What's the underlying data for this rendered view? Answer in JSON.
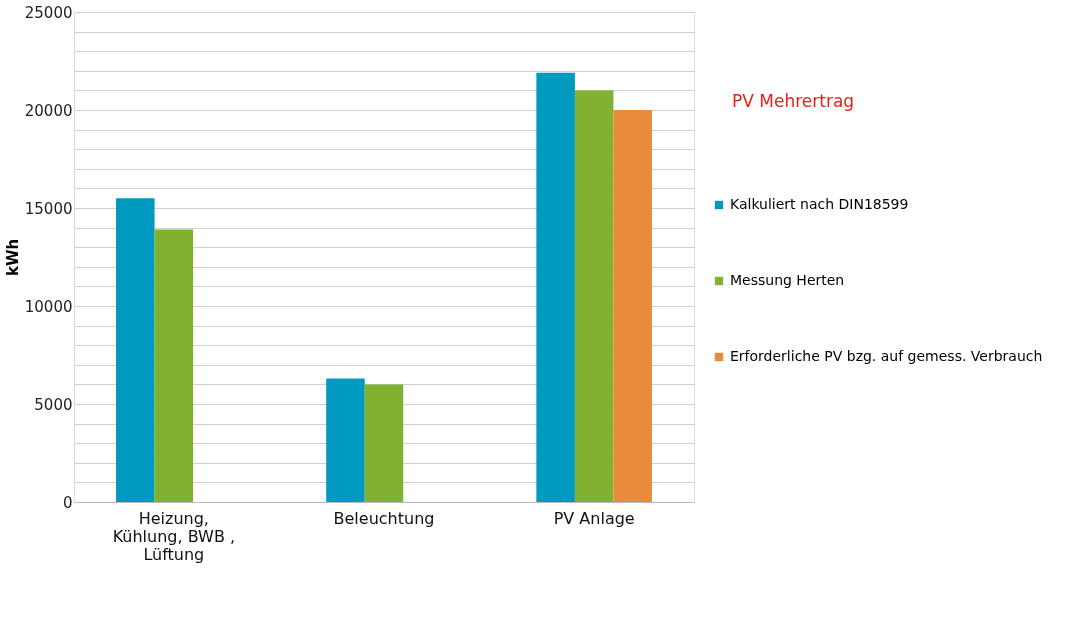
{
  "chart_data": {
    "type": "bar",
    "ylabel": "kWh",
    "categories": [
      "Heizung, Kühlung, BWB , Lüftung",
      "Beleuchtung",
      "PV Anlage"
    ],
    "series": [
      {
        "name": "Kalkuliert nach DIN18599",
        "color": "#0099c0",
        "values": [
          15500,
          6300,
          21900
        ]
      },
      {
        "name": "Messung Herten",
        "color": "#80b130",
        "values": [
          13900,
          6000,
          21000
        ]
      },
      {
        "name": "Erforderliche PV bzg. auf gemess.  Verbrauch",
        "color": "#e88c3c",
        "values": [
          null,
          null,
          20000
        ]
      }
    ],
    "ylim": [
      0,
      25000
    ],
    "yticks": [
      0,
      {
        "value": 1000,
        "label": null
      },
      {
        "value": 2000,
        "label": null
      },
      {
        "value": 3000,
        "label": null
      },
      {
        "value": 4000,
        "label": null
      },
      5000,
      {
        "value": 6000,
        "label": null
      },
      {
        "value": 7000,
        "label": null
      },
      {
        "value": 8000,
        "label": null
      },
      {
        "value": 9000,
        "label": null
      },
      10000,
      {
        "value": 11000,
        "label": null
      },
      {
        "value": 12000,
        "label": null
      },
      {
        "value": 13000,
        "label": null
      },
      {
        "value": 14000,
        "label": null
      },
      15000,
      {
        "value": 16000,
        "label": null
      },
      {
        "value": 17000,
        "label": null
      },
      {
        "value": 18000,
        "label": null
      },
      {
        "value": 19000,
        "label": null
      },
      20000,
      {
        "value": 21000,
        "label": null
      },
      {
        "value": 22000,
        "label": null
      },
      {
        "value": 23000,
        "label": null
      },
      {
        "value": 24000,
        "label": null
      },
      25000
    ],
    "grid": "y",
    "legend": "right",
    "annotations": [
      "PV Mehrertrag"
    ]
  }
}
